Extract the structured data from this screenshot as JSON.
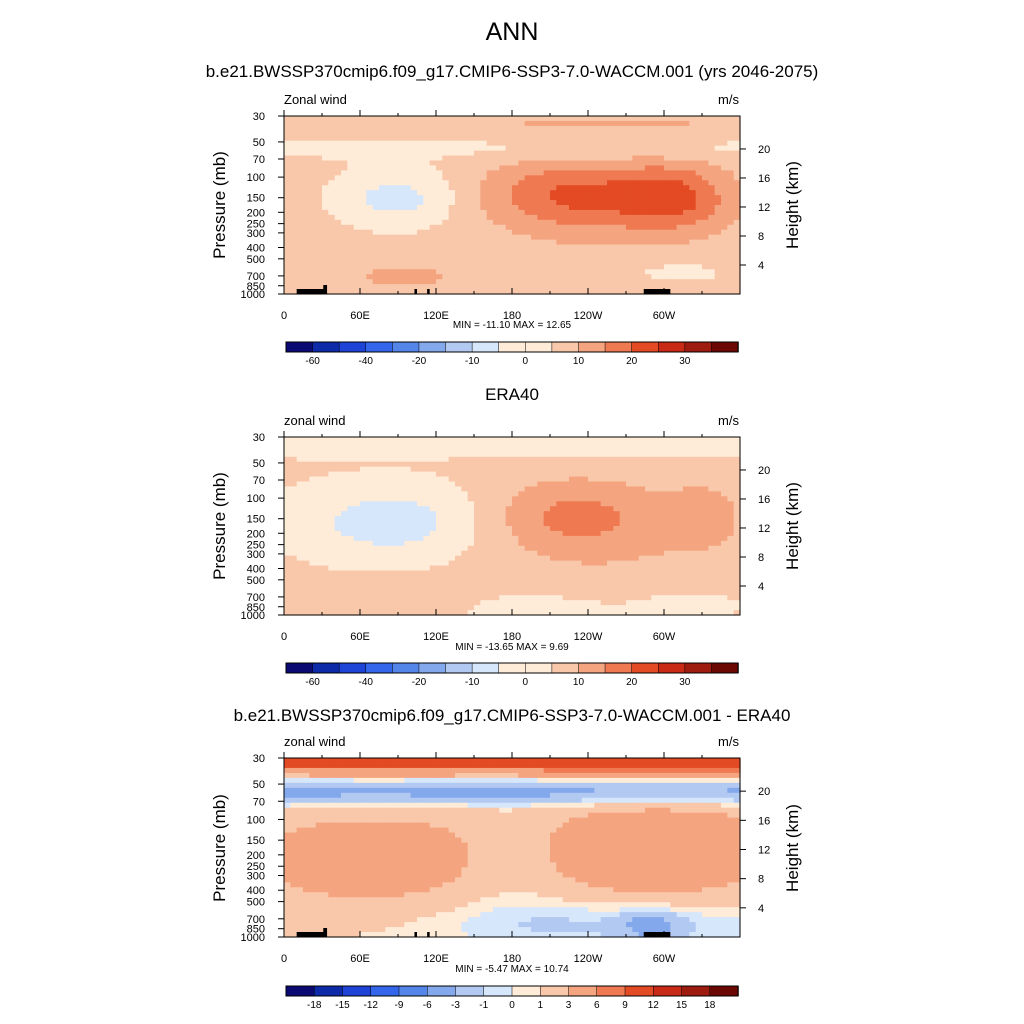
{
  "title": "ANN",
  "levels": {
    "main": [
      -60,
      -50,
      -40,
      -30,
      -20,
      -15,
      -10,
      -5,
      0,
      5,
      10,
      15,
      20,
      25,
      30,
      40
    ],
    "diff": [
      -18,
      -15,
      -12,
      -9,
      -6,
      -3,
      -1,
      0,
      1,
      3,
      6,
      9,
      12,
      15,
      18
    ]
  },
  "colors": {
    "palette": [
      "#0b0a73",
      "#0d2aa9",
      "#1d44d6",
      "#3366ea",
      "#5486ea",
      "#84a8ec",
      "#b2c9f2",
      "#d6e6fb",
      "#feebd8",
      "#f9c8aa",
      "#f4a47f",
      "#ef7a52",
      "#e34b24",
      "#c92a15",
      "#9e1b10",
      "#6b0804"
    ]
  },
  "x_ticks": [
    "0",
    "60E",
    "120E",
    "180",
    "120W",
    "60W"
  ],
  "y_ticks": [
    "30",
    "50",
    "70",
    "100",
    "150",
    "200",
    "250",
    "300",
    "400",
    "500",
    "700",
    "850",
    "1000"
  ],
  "h_ticks": [
    "20",
    "16",
    "12",
    "8",
    "4"
  ],
  "panels": [
    {
      "title": "b.e21.BWSSP370cmip6.f09_g17.CMIP6-SSP3-7.0-WACCM.001 (yrs 2046-2075)",
      "left_label": "Zonal wind",
      "right_label": "m/s",
      "ylabel": "Pressure (mb)",
      "y2label": "Height (km)",
      "minmax": "MIN = -11.10  MAX =  12.65",
      "colorbar_labels": [
        "-60",
        "-40",
        "-20",
        "-10",
        "0",
        "10",
        "20",
        "30"
      ]
    },
    {
      "title": "ERA40",
      "left_label": "zonal wind",
      "right_label": "m/s",
      "ylabel": "Pressure (mb)",
      "y2label": "Height (km)",
      "minmax": "MIN = -13.65  MAX =   9.69",
      "colorbar_labels": [
        "-60",
        "-40",
        "-20",
        "-10",
        "0",
        "10",
        "20",
        "30"
      ]
    },
    {
      "title": "b.e21.BWSSP370cmip6.f09_g17.CMIP6-SSP3-7.0-WACCM.001 - ERA40",
      "left_label": "zonal wind",
      "right_label": "m/s",
      "ylabel": "Pressure (mb)",
      "y2label": "Height (km)",
      "minmax": "MIN =  -5.47  MAX =  10.74",
      "colorbar_labels": [
        "-18",
        "-15",
        "-12",
        "-9",
        "-6",
        "-3",
        "-1",
        "0",
        "1",
        "3",
        "6",
        "9",
        "12",
        "15",
        "18"
      ]
    }
  ],
  "chart_data": [
    {
      "type": "heatmap",
      "title": "b.e21.BWSSP370cmip6.f09_g17.CMIP6-SSP3-7.0-WACCM.001 (yrs 2046-2075)",
      "xlabel": "",
      "ylabel": "Pressure (mb)",
      "y2label": "Height (km)",
      "xlim": [
        0,
        360
      ],
      "ylim_pressure": [
        1000,
        30
      ],
      "y_scale": "log",
      "min": -11.1,
      "max": 12.65,
      "units": "m/s",
      "features": [
        {
          "kind": "blob",
          "lon": 90,
          "p": 150,
          "dlon": 35,
          "dlogp": 0.18,
          "amp": -9
        },
        {
          "kind": "blob",
          "lon": 225,
          "p": 140,
          "dlon": 50,
          "dlogp": 0.2,
          "amp": 11
        },
        {
          "kind": "blob",
          "lon": 310,
          "p": 150,
          "dlon": 30,
          "dlogp": 0.2,
          "amp": 12
        },
        {
          "kind": "blob",
          "lon": 255,
          "p": 180,
          "dlon": 50,
          "dlogp": 0.28,
          "amp": 4
        },
        {
          "kind": "band",
          "p": 55,
          "dlogp": 0.08,
          "amp": -3.5
        },
        {
          "kind": "band",
          "p": 35,
          "dlogp": 0.1,
          "amp": 3
        },
        {
          "kind": "blob",
          "lon": 95,
          "p": 700,
          "dlon": 40,
          "dlogp": 0.1,
          "amp": 4
        },
        {
          "kind": "blob",
          "lon": 310,
          "p": 650,
          "dlon": 40,
          "dlogp": 0.1,
          "amp": -3
        }
      ],
      "base": 2
    },
    {
      "type": "heatmap",
      "title": "ERA40",
      "xlabel": "",
      "ylabel": "Pressure (mb)",
      "y2label": "Height (km)",
      "xlim": [
        0,
        360
      ],
      "ylim_pressure": [
        1000,
        30
      ],
      "y_scale": "log",
      "min": -13.65,
      "max": 9.69,
      "units": "m/s",
      "features": [
        {
          "kind": "blob",
          "lon": 85,
          "p": 160,
          "dlon": 50,
          "dlogp": 0.22,
          "amp": -9
        },
        {
          "kind": "blob",
          "lon": 230,
          "p": 140,
          "dlon": 45,
          "dlogp": 0.22,
          "amp": 9
        },
        {
          "kind": "blob",
          "lon": 330,
          "p": 140,
          "dlon": 20,
          "dlogp": 0.18,
          "amp": 6
        },
        {
          "kind": "blob",
          "lon": 270,
          "p": 250,
          "dlon": 80,
          "dlogp": 0.35,
          "amp": 3
        },
        {
          "kind": "band",
          "p": 35,
          "dlogp": 0.07,
          "amp": -4
        },
        {
          "kind": "blob",
          "lon": 80,
          "p": 700,
          "dlon": 40,
          "dlogp": 0.1,
          "amp": 3
        },
        {
          "kind": "blob",
          "lon": 200,
          "p": 850,
          "dlon": 50,
          "dlogp": 0.1,
          "amp": -3
        },
        {
          "kind": "blob",
          "lon": 320,
          "p": 800,
          "dlon": 35,
          "dlogp": 0.1,
          "amp": -3
        }
      ],
      "base": 1
    },
    {
      "type": "heatmap",
      "title": "b.e21.BWSSP370cmip6.f09_g17.CMIP6-SSP3-7.0-WACCM.001 - ERA40",
      "xlabel": "",
      "ylabel": "Pressure (mb)",
      "y2label": "Height (km)",
      "xlim": [
        0,
        360
      ],
      "ylim_pressure": [
        1000,
        30
      ],
      "y_scale": "log",
      "min": -5.47,
      "max": 10.74,
      "units": "m/s",
      "features": [
        {
          "kind": "band",
          "p": 32,
          "dlogp": 0.05,
          "amp": 9
        },
        {
          "kind": "band",
          "p": 40,
          "dlogp": 0.05,
          "amp": 3
        },
        {
          "kind": "band",
          "p": 58,
          "dlogp": 0.08,
          "amp": -5
        },
        {
          "kind": "blob",
          "lon": 70,
          "p": 220,
          "dlon": 90,
          "dlogp": 0.35,
          "amp": 4
        },
        {
          "kind": "blob",
          "lon": 300,
          "p": 180,
          "dlon": 70,
          "dlogp": 0.35,
          "amp": 5
        },
        {
          "kind": "blob",
          "lon": 180,
          "p": 250,
          "dlon": 30,
          "dlogp": 0.3,
          "amp": -1.5
        },
        {
          "kind": "blob",
          "lon": 260,
          "p": 750,
          "dlon": 100,
          "dlogp": 0.15,
          "amp": -2.5
        },
        {
          "kind": "blob",
          "lon": 290,
          "p": 800,
          "dlon": 15,
          "dlogp": 0.08,
          "amp": -4
        }
      ],
      "base": 0.5
    }
  ]
}
